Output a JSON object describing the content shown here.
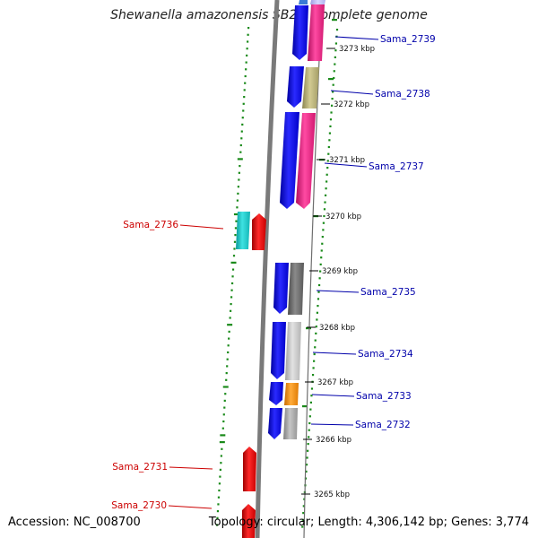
{
  "title": "Shewanella amazonensis SB2B, complete genome",
  "footer": {
    "accession": "Accession: NC_008700",
    "summary": "Topology: circular; Length: 4,306,142 bp; Genes: 3,774"
  },
  "ticks": [
    {
      "label": "3273 kbp"
    },
    {
      "label": "3272 kbp"
    },
    {
      "label": "3271 kbp"
    },
    {
      "label": "3270 kbp"
    },
    {
      "label": "3269 kbp"
    },
    {
      "label": "3268 kbp"
    },
    {
      "label": "3267 kbp"
    },
    {
      "label": "3266 kbp"
    },
    {
      "label": "3265 kbp"
    }
  ],
  "genes": [
    {
      "name": "Sama_2739",
      "strand": "forward",
      "cds_color": "#e8207f"
    },
    {
      "name": "Sama_2738",
      "strand": "forward",
      "cds_color": "#b5ad72"
    },
    {
      "name": "Sama_2737",
      "strand": "forward",
      "cds_color": "#e8207f"
    },
    {
      "name": "Sama_2736",
      "strand": "reverse",
      "cds_color": "#17c6c6"
    },
    {
      "name": "Sama_2735",
      "strand": "forward",
      "cds_color": "#6a6a6a"
    },
    {
      "name": "Sama_2734",
      "strand": "forward",
      "cds_color": "#c0c0c0"
    },
    {
      "name": "Sama_2733",
      "strand": "forward",
      "cds_color": "#f58d0a"
    },
    {
      "name": "Sama_2732",
      "strand": "forward",
      "cds_color": "#a8a8a8"
    },
    {
      "name": "Sama_2731",
      "strand": "reverse",
      "cds_color": null
    },
    {
      "name": "Sama_2730",
      "strand": "reverse",
      "cds_color": null
    }
  ],
  "colors": {
    "forward_gene": "#0000e6",
    "reverse_gene": "#ee0000",
    "forward_label": "#0000aa",
    "reverse_label": "#cc0000",
    "backbone": "#7a7a7a",
    "gc_dots": "#1a8a1a"
  }
}
